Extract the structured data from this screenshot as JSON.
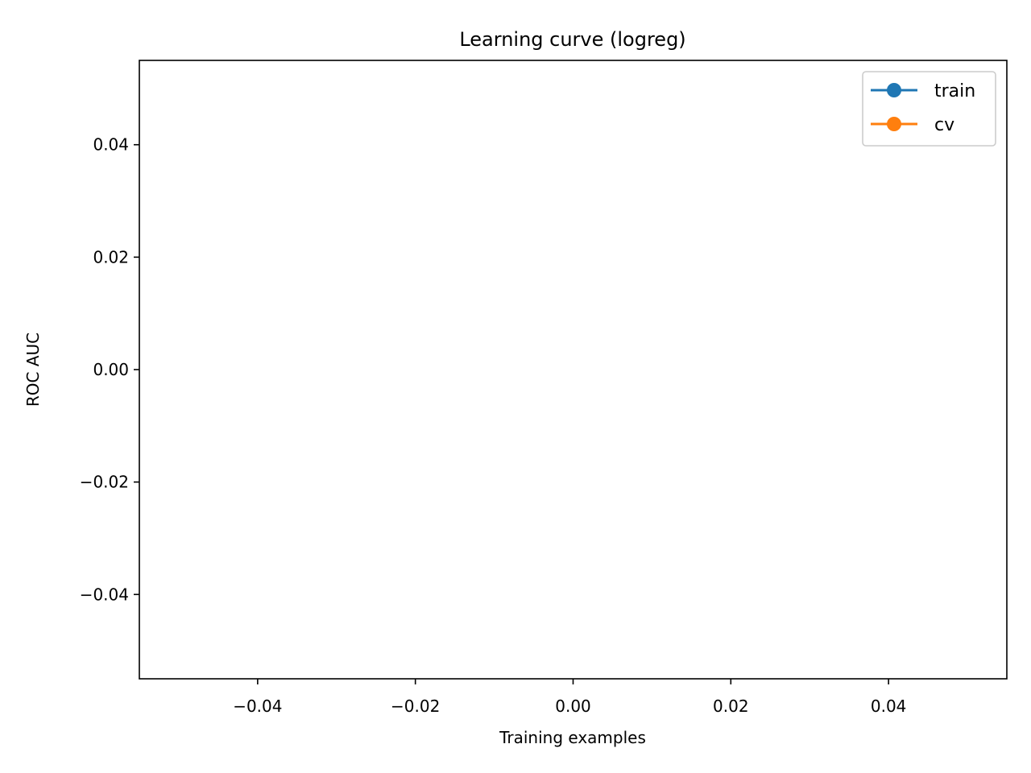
{
  "chart_data": {
    "type": "line",
    "title": "Learning curve (logreg)",
    "xlabel": "Training examples",
    "ylabel": "ROC AUC",
    "xlim": [
      -0.055,
      0.055
    ],
    "ylim": [
      -0.055,
      0.055
    ],
    "xticks": [
      -0.04,
      -0.02,
      0.0,
      0.02,
      0.04
    ],
    "yticks": [
      -0.04,
      -0.02,
      0.0,
      0.02,
      0.04
    ],
    "xtick_labels": [
      "−0.04",
      "−0.02",
      "0.00",
      "0.02",
      "0.04"
    ],
    "ytick_labels": [
      "−0.04",
      "−0.02",
      "0.00",
      "0.02",
      "0.04"
    ],
    "grid": false,
    "legend_position": "top-right",
    "series": [
      {
        "name": "train",
        "color": "#1f77b4",
        "marker": "circle",
        "x": [],
        "y": []
      },
      {
        "name": "cv",
        "color": "#ff7f0e",
        "marker": "circle",
        "x": [],
        "y": []
      }
    ]
  }
}
